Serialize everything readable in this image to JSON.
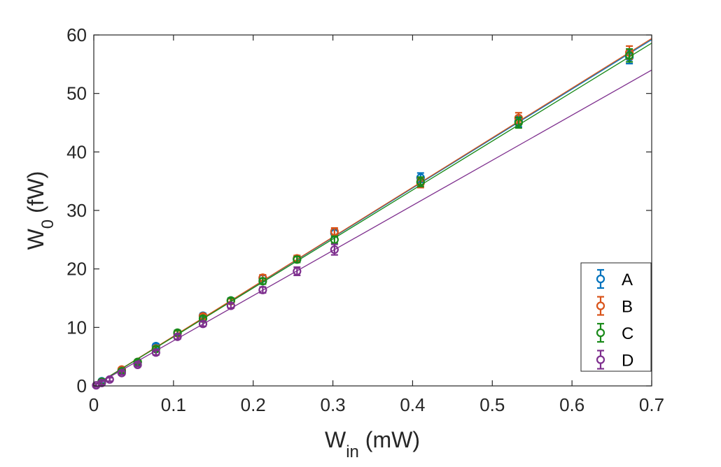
{
  "chart_data": {
    "type": "scatter",
    "title": "",
    "xlabel": {
      "main": "W",
      "sub": "in",
      "unit": " (mW)"
    },
    "ylabel": {
      "main": "W",
      "sub": "0",
      "unit": " (fW)"
    },
    "xlim": [
      0,
      0.7
    ],
    "ylim": [
      0,
      60
    ],
    "xticks": [
      0,
      0.1,
      0.2,
      0.3,
      0.4,
      0.5,
      0.6,
      0.7
    ],
    "xtick_labels": [
      "0",
      "0.1",
      "0.2",
      "0.3",
      "0.4",
      "0.5",
      "0.6",
      "0.7"
    ],
    "yticks": [
      0,
      10,
      20,
      30,
      40,
      50,
      60
    ],
    "ytick_labels": [
      "0",
      "10",
      "20",
      "30",
      "40",
      "50",
      "60"
    ],
    "grid": false,
    "legend_position": "bottom-right",
    "series": [
      {
        "name": "A",
        "color": "#0072BD",
        "fit": [
          [
            0,
            0
          ],
          [
            0.7,
            59.2
          ]
        ],
        "points": [
          {
            "x": 0.01,
            "y": 0.8,
            "err": 0.3
          },
          {
            "x": 0.035,
            "y": 2.7,
            "err": 0.3
          },
          {
            "x": 0.055,
            "y": 4.0,
            "err": 0.3
          },
          {
            "x": 0.078,
            "y": 6.8,
            "err": 0.4
          },
          {
            "x": 0.105,
            "y": 9.0,
            "err": 0.4
          },
          {
            "x": 0.137,
            "y": 12.0,
            "err": 0.4
          },
          {
            "x": 0.172,
            "y": 14.6,
            "err": 0.4
          },
          {
            "x": 0.212,
            "y": 18.4,
            "err": 0.5
          },
          {
            "x": 0.255,
            "y": 21.7,
            "err": 0.5
          },
          {
            "x": 0.302,
            "y": 26.1,
            "err": 0.6
          },
          {
            "x": 0.41,
            "y": 35.6,
            "err": 0.8
          },
          {
            "x": 0.533,
            "y": 45.2,
            "err": 0.9
          },
          {
            "x": 0.672,
            "y": 56.2,
            "err": 1.1
          }
        ]
      },
      {
        "name": "B",
        "color": "#D95319",
        "fit": [
          [
            0,
            0
          ],
          [
            0.7,
            59.4
          ]
        ],
        "points": [
          {
            "x": 0.01,
            "y": 0.7,
            "err": 0.3
          },
          {
            "x": 0.035,
            "y": 2.8,
            "err": 0.3
          },
          {
            "x": 0.055,
            "y": 4.1,
            "err": 0.3
          },
          {
            "x": 0.078,
            "y": 6.4,
            "err": 0.4
          },
          {
            "x": 0.105,
            "y": 9.0,
            "err": 0.4
          },
          {
            "x": 0.137,
            "y": 11.9,
            "err": 0.4
          },
          {
            "x": 0.172,
            "y": 14.5,
            "err": 0.4
          },
          {
            "x": 0.212,
            "y": 18.5,
            "err": 0.5
          },
          {
            "x": 0.255,
            "y": 21.8,
            "err": 0.5
          },
          {
            "x": 0.302,
            "y": 26.4,
            "err": 0.6
          },
          {
            "x": 0.41,
            "y": 34.7,
            "err": 0.8
          },
          {
            "x": 0.533,
            "y": 45.8,
            "err": 0.9
          },
          {
            "x": 0.672,
            "y": 57.0,
            "err": 1.1
          }
        ]
      },
      {
        "name": "C",
        "color": "#1A8A1A",
        "fit": [
          [
            0,
            0
          ],
          [
            0.7,
            58.6
          ]
        ],
        "points": [
          {
            "x": 0.01,
            "y": 0.7,
            "err": 0.3
          },
          {
            "x": 0.035,
            "y": 2.5,
            "err": 0.3
          },
          {
            "x": 0.055,
            "y": 4.1,
            "err": 0.3
          },
          {
            "x": 0.078,
            "y": 6.3,
            "err": 0.4
          },
          {
            "x": 0.105,
            "y": 9.1,
            "err": 0.4
          },
          {
            "x": 0.137,
            "y": 11.5,
            "err": 0.4
          },
          {
            "x": 0.172,
            "y": 14.6,
            "err": 0.4
          },
          {
            "x": 0.212,
            "y": 17.9,
            "err": 0.5
          },
          {
            "x": 0.255,
            "y": 21.6,
            "err": 0.5
          },
          {
            "x": 0.302,
            "y": 25.0,
            "err": 0.6
          },
          {
            "x": 0.41,
            "y": 34.9,
            "err": 0.8
          },
          {
            "x": 0.533,
            "y": 45.0,
            "err": 0.9
          },
          {
            "x": 0.672,
            "y": 56.5,
            "err": 1.1
          }
        ]
      },
      {
        "name": "D",
        "color": "#7E2F8E",
        "fit": [
          [
            0,
            0
          ],
          [
            0.7,
            54.0
          ]
        ],
        "points": [
          {
            "x": 0.003,
            "y": 0.1,
            "err": 0.3
          },
          {
            "x": 0.01,
            "y": 0.5,
            "err": 0.3
          },
          {
            "x": 0.02,
            "y": 1.1,
            "err": 0.3
          },
          {
            "x": 0.035,
            "y": 2.2,
            "err": 0.3
          },
          {
            "x": 0.055,
            "y": 3.6,
            "err": 0.3
          },
          {
            "x": 0.078,
            "y": 5.7,
            "err": 0.4
          },
          {
            "x": 0.105,
            "y": 8.4,
            "err": 0.4
          },
          {
            "x": 0.137,
            "y": 10.6,
            "err": 0.4
          },
          {
            "x": 0.172,
            "y": 13.7,
            "err": 0.4
          },
          {
            "x": 0.212,
            "y": 16.4,
            "err": 0.5
          },
          {
            "x": 0.255,
            "y": 19.6,
            "err": 0.7
          },
          {
            "x": 0.302,
            "y": 23.3,
            "err": 0.9
          }
        ]
      }
    ]
  }
}
